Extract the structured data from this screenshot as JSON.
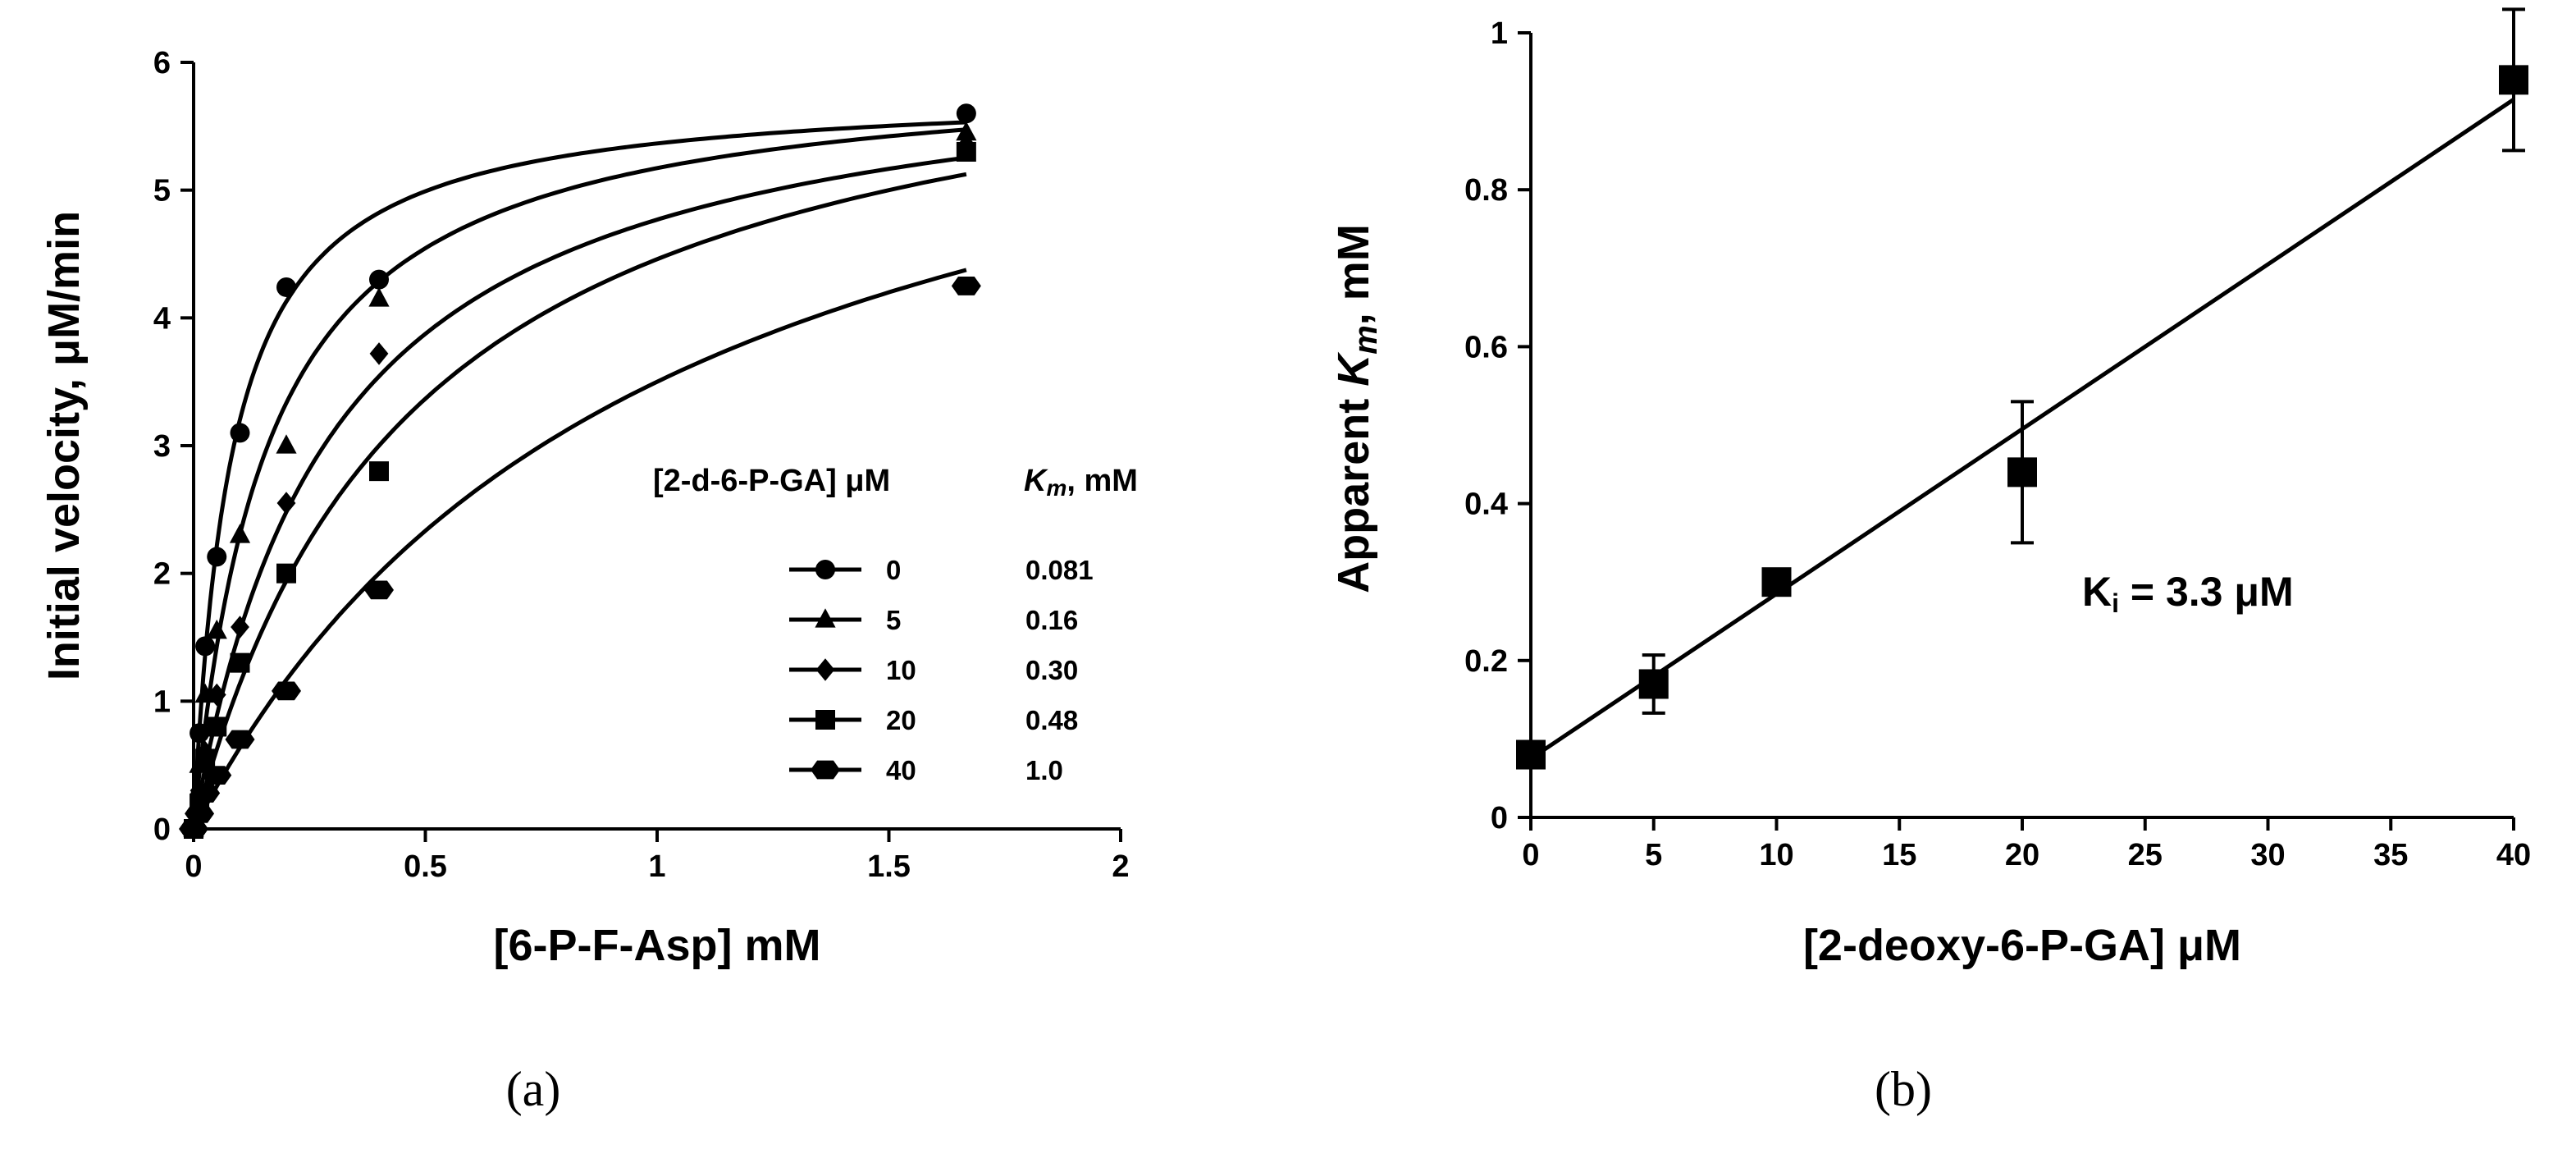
{
  "chart_data": [
    {
      "panel": "a",
      "panel_label": "(a)",
      "type": "scatter",
      "xlabel": "[6-P-F-Asp] mM",
      "ylabel": "Initial velocity, μM/min",
      "xlim": [
        0,
        2
      ],
      "ylim": [
        0,
        6
      ],
      "x_ticks": [
        "0",
        "0.5",
        "1",
        "1.5",
        "2"
      ],
      "y_ticks": [
        "0",
        "1",
        "2",
        "3",
        "4",
        "5",
        "6"
      ],
      "legend_title_conc": "[2-d-6-P-GA] μM",
      "legend_title_km": "Km, mM",
      "legend_title_km_symbol": "K",
      "legend_title_km_sub": "m",
      "legend_title_km_unit": ", mM",
      "series": [
        {
          "name": "0",
          "km_label": "0.081",
          "marker": "circle",
          "vmax": 5.8,
          "km": 0.081,
          "x": [
            0,
            0.0125,
            0.025,
            0.05,
            0.1,
            0.2,
            0.4,
            1.667
          ],
          "y": [
            0,
            0.75,
            1.43,
            2.13,
            3.1,
            4.24,
            4.3,
            5.6
          ]
        },
        {
          "name": "5",
          "km_label": "0.16",
          "marker": "triangle",
          "vmax": 6.0,
          "km": 0.16,
          "x": [
            0,
            0.0125,
            0.025,
            0.05,
            0.1,
            0.2,
            0.4,
            1.667
          ],
          "y": [
            0,
            0.5,
            1.05,
            1.55,
            2.3,
            3.0,
            4.15,
            5.45
          ]
        },
        {
          "name": "10",
          "km_label": "0.30",
          "marker": "diamond",
          "vmax": 6.2,
          "km": 0.3,
          "x": [
            0,
            0.0125,
            0.025,
            0.05,
            0.1,
            0.2,
            0.4,
            1.667
          ],
          "y": [
            0,
            0.3,
            0.6,
            1.05,
            1.58,
            2.55,
            3.72,
            5.35
          ]
        },
        {
          "name": "20",
          "km_label": "0.48",
          "marker": "square",
          "vmax": 6.6,
          "km": 0.48,
          "x": [
            0,
            0.0125,
            0.025,
            0.05,
            0.1,
            0.2,
            0.4,
            1.667
          ],
          "y": [
            0,
            0.2,
            0.55,
            0.8,
            1.3,
            2.0,
            2.8,
            5.3
          ]
        },
        {
          "name": "40",
          "km_label": "1.0",
          "marker": "hexagon",
          "vmax": 7.0,
          "km": 1.0,
          "x": [
            0,
            0.0125,
            0.025,
            0.05,
            0.1,
            0.2,
            0.4,
            1.667
          ],
          "y": [
            0,
            0.12,
            0.28,
            0.42,
            0.7,
            1.08,
            1.87,
            4.25
          ]
        }
      ]
    },
    {
      "panel": "b",
      "panel_label": "(b)",
      "type": "scatter",
      "xlabel": "[2-deoxy-6-P-GA] μM",
      "ylabel": "Apparent Km, mM",
      "ylabel_prefix": "Apparent ",
      "ylabel_k": "K",
      "ylabel_sub": "m",
      "ylabel_suffix": ", mM",
      "xlim": [
        0,
        40
      ],
      "ylim": [
        0,
        1
      ],
      "x_ticks": [
        "0",
        "5",
        "10",
        "15",
        "20",
        "25",
        "30",
        "35",
        "40"
      ],
      "y_ticks": [
        "0",
        "0.2",
        "0.4",
        "0.6",
        "0.8",
        "1"
      ],
      "annotation": "Ki = 3.3 μM",
      "annotation_k": "K",
      "annotation_sub": "i",
      "annotation_rest": " = 3.3 μM",
      "series": [
        {
          "name": "Apparent Km",
          "marker": "square",
          "x": [
            0,
            5,
            10,
            20,
            40
          ],
          "y": [
            0.08,
            0.17,
            0.3,
            0.44,
            0.94
          ],
          "err": [
            0,
            0.037,
            0,
            0.09,
            0.09
          ]
        }
      ],
      "fit_line": {
        "x": [
          0,
          40
        ],
        "y": [
          0.075,
          0.915
        ]
      }
    }
  ]
}
